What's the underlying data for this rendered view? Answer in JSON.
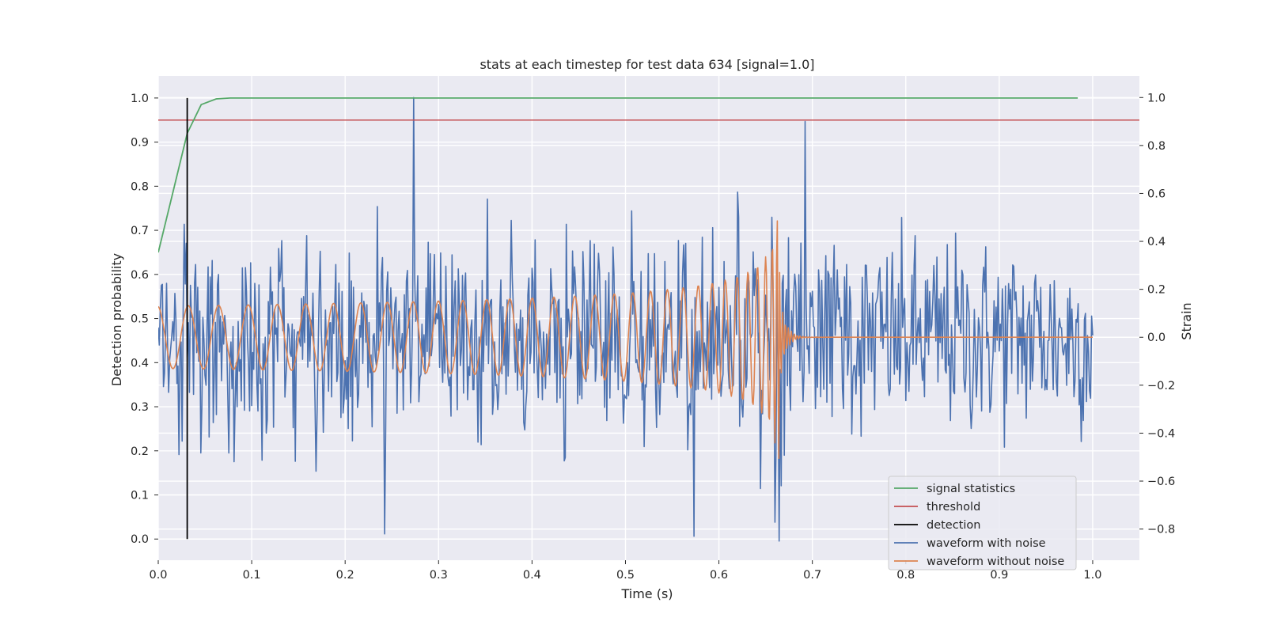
{
  "chart_data": {
    "type": "line",
    "title": "stats at each timestep for test data 634 [signal=1.0]",
    "xlabel": "Time (s)",
    "ylabel_left": "Detection probability",
    "ylabel_right": "Strain",
    "xlim": [
      0.0,
      1.05
    ],
    "ylim_left": [
      -0.048,
      1.05
    ],
    "ylim_right": [
      -0.93,
      1.09
    ],
    "x_ticks": [
      "0.0",
      "0.1",
      "0.2",
      "0.3",
      "0.4",
      "0.5",
      "0.6",
      "0.7",
      "0.8",
      "0.9",
      "1.0"
    ],
    "y_left_ticks": [
      "0.0",
      "0.1",
      "0.2",
      "0.3",
      "0.4",
      "0.5",
      "0.6",
      "0.7",
      "0.8",
      "0.9",
      "1.0"
    ],
    "y_right_ticks": [
      "−0.8",
      "−0.6",
      "−0.4",
      "−0.2",
      "0.0",
      "0.2",
      "0.4",
      "0.6",
      "0.8",
      "1.0"
    ],
    "grid": true,
    "legend_position": "lower-right",
    "colors": {
      "signal statistics": "#55a868",
      "threshold": "#c44e52",
      "detection": "#000000",
      "waveform with noise": "#4c72b0",
      "waveform without noise": "#dd8452",
      "plot_background": "#eaeaf2"
    },
    "series": [
      {
        "name": "signal statistics",
        "axis": "left",
        "x": [
          0.0,
          0.015,
          0.031,
          0.046,
          0.062,
          0.077,
          0.2,
          0.4,
          0.6,
          0.8,
          0.984
        ],
        "y": [
          0.65,
          0.78,
          0.92,
          0.985,
          0.998,
          1.0,
          1.0,
          1.0,
          1.0,
          1.0,
          1.0
        ]
      },
      {
        "name": "threshold",
        "axis": "left",
        "x": [
          0.0,
          1.05
        ],
        "y": [
          0.95,
          0.95
        ]
      },
      {
        "name": "detection",
        "axis": "left",
        "x": [
          0.031,
          0.031
        ],
        "y": [
          0.0,
          1.0
        ]
      },
      {
        "name": "waveform with noise",
        "axis": "right",
        "x_range": [
          0.0,
          1.0
        ],
        "y_range": [
          -0.85,
          1.0
        ],
        "peak_points": [
          [
            0.273,
            1.0
          ],
          [
            0.692,
            0.9
          ],
          [
            0.664,
            -0.85
          ],
          [
            0.242,
            -0.82
          ],
          [
            0.573,
            -0.83
          ]
        ]
      },
      {
        "name": "waveform without noise",
        "axis": "right",
        "x_range": [
          0.0,
          1.0
        ],
        "chirp_end": 0.665,
        "max_strain": 0.55,
        "min_strain": -0.6
      }
    ],
    "legend": [
      "signal statistics",
      "threshold",
      "detection",
      "waveform with noise",
      "waveform without noise"
    ]
  }
}
